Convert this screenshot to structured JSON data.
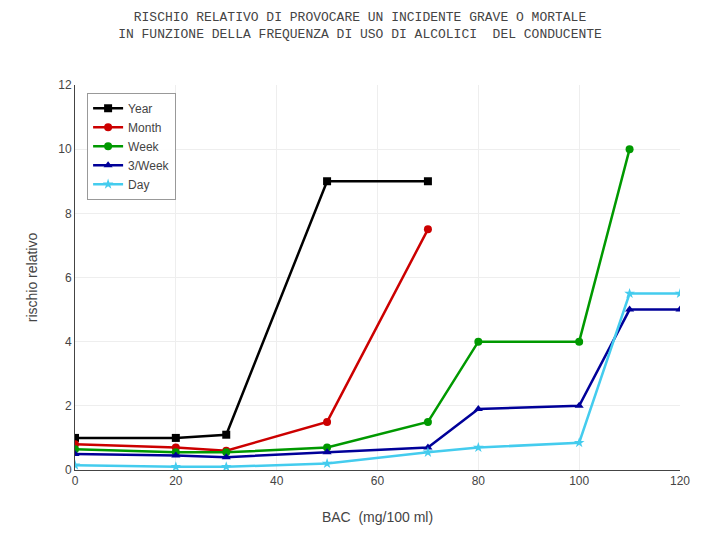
{
  "chart_data": {
    "type": "line",
    "title": "RISCHIO RELATIVO DI PROVOCARE UN INCIDENTE GRAVE O MORTALE",
    "subtitle": "IN FUNZIONE DELLA FREQUENZA DI USO DI ALCOLICI  DEL CONDUCENTE",
    "x_label": "BAC  (mg/100 ml)",
    "y_label": "rischio relativo",
    "xlim": [
      0,
      120
    ],
    "ylim": [
      0,
      12
    ],
    "xticks": [
      0,
      20,
      40,
      60,
      80,
      100,
      120
    ],
    "yticks": [
      0,
      2,
      4,
      6,
      8,
      10,
      12
    ],
    "grid": true,
    "legend": "upper left",
    "series": [
      {
        "name": "Year",
        "color": "#000000",
        "marker": "square",
        "x": [
          0,
          20,
          30,
          50,
          70
        ],
        "values": [
          1.0,
          1.0,
          1.1,
          9.0,
          9.0
        ]
      },
      {
        "name": "Month",
        "color": "#CC0000",
        "marker": "circle",
        "x": [
          0,
          20,
          30,
          50,
          70
        ],
        "values": [
          0.8,
          0.7,
          0.6,
          1.5,
          7.5
        ]
      },
      {
        "name": "Week",
        "color": "#009900",
        "marker": "circle",
        "x": [
          0,
          20,
          30,
          50,
          70,
          80,
          100,
          110
        ],
        "values": [
          0.65,
          0.55,
          0.55,
          0.7,
          1.5,
          4.0,
          4.0,
          10.0
        ]
      },
      {
        "name": "3/Week",
        "color": "#000099",
        "marker": "triangle-up",
        "x": [
          0,
          20,
          30,
          50,
          70,
          80,
          100,
          110,
          120
        ],
        "values": [
          0.5,
          0.45,
          0.4,
          0.55,
          0.7,
          1.9,
          2.0,
          5.0,
          5.0
        ]
      },
      {
        "name": "Day",
        "color": "#44CCEE",
        "marker": "star",
        "x": [
          0,
          20,
          30,
          50,
          70,
          80,
          100,
          110,
          120
        ],
        "values": [
          0.15,
          0.1,
          0.1,
          0.2,
          0.55,
          0.7,
          0.85,
          5.5,
          5.5
        ]
      }
    ]
  }
}
